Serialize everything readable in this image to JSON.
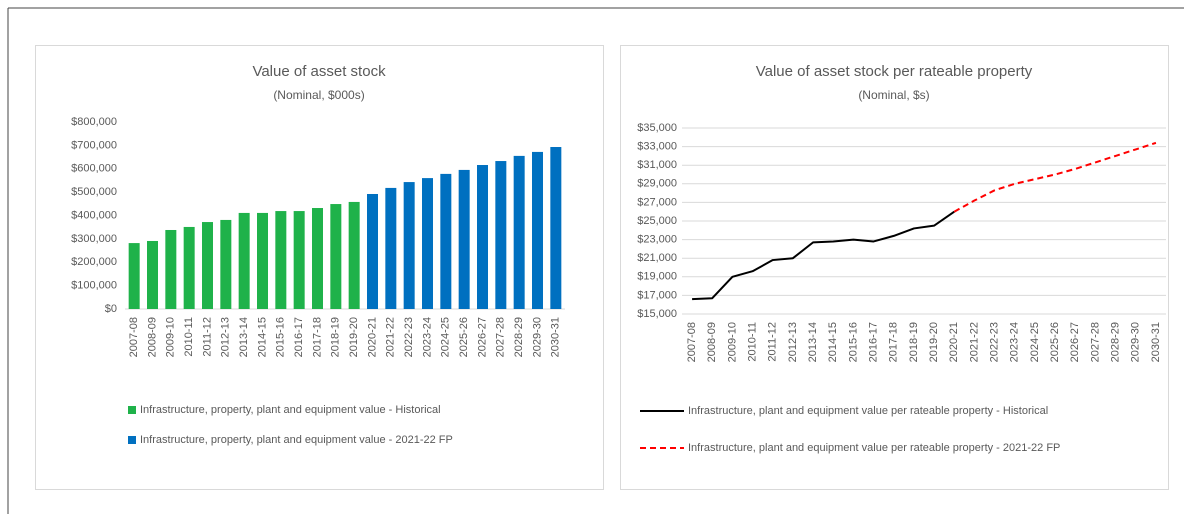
{
  "chart_data": [
    {
      "type": "bar",
      "title": "Value of asset stock",
      "subtitle": "(Nominal, $000s)",
      "categories": [
        "2007-08",
        "2008-09",
        "2009-10",
        "2010-11",
        "2011-12",
        "2012-13",
        "2013-14",
        "2014-15",
        "2015-16",
        "2016-17",
        "2017-18",
        "2018-19",
        "2019-20",
        "2020-21",
        "2021-22",
        "2022-23",
        "2023-24",
        "2024-25",
        "2025-26",
        "2026-27",
        "2027-28",
        "2028-29",
        "2029-30",
        "2030-31"
      ],
      "series": [
        {
          "name": "Infrastructure, property, plant and equipment value - Historical",
          "color": "#1fb24a",
          "values": [
            282000,
            291000,
            338000,
            351000,
            372000,
            381000,
            411000,
            411000,
            419000,
            419000,
            432000,
            449000,
            458000,
            null,
            null,
            null,
            null,
            null,
            null,
            null,
            null,
            null,
            null,
            null
          ]
        },
        {
          "name": "Infrastructure, property, plant and equipment value - 2021-22 FP",
          "color": "#0070c0",
          "values": [
            null,
            null,
            null,
            null,
            null,
            null,
            null,
            null,
            null,
            null,
            null,
            null,
            null,
            492000,
            518000,
            543000,
            560000,
            578000,
            595000,
            616000,
            633000,
            655000,
            672000,
            693000
          ]
        }
      ],
      "ylim": [
        0,
        800000
      ],
      "yticks": [
        {
          "value": 0,
          "label": "$0"
        },
        {
          "value": 100000,
          "label": "$100,000"
        },
        {
          "value": 200000,
          "label": "$200,000"
        },
        {
          "value": 300000,
          "label": "$300,000"
        },
        {
          "value": 400000,
          "label": "$400,000"
        },
        {
          "value": 500000,
          "label": "$500,000"
        },
        {
          "value": 600000,
          "label": "$600,000"
        },
        {
          "value": 700000,
          "label": "$700,000"
        },
        {
          "value": 800000,
          "label": "$800,000"
        }
      ],
      "grid": false,
      "legend": "bottom"
    },
    {
      "type": "line",
      "title": "Value of asset stock per rateable property",
      "subtitle": "(Nominal, $s)",
      "categories": [
        "2007-08",
        "2008-09",
        "2009-10",
        "2010-11",
        "2011-12",
        "2012-13",
        "2013-14",
        "2014-15",
        "2015-16",
        "2016-17",
        "2017-18",
        "2018-19",
        "2019-20",
        "2020-21",
        "2021-22",
        "2022-23",
        "2023-24",
        "2024-25",
        "2025-26",
        "2026-27",
        "2027-28",
        "2028-29",
        "2029-30",
        "2030-31"
      ],
      "series": [
        {
          "name": "Infrastructure, plant and equipment value per rateable property - Historical",
          "color": "#000000",
          "dash": false,
          "values": [
            16600,
            16700,
            19000,
            19600,
            20800,
            21000,
            22700,
            22800,
            23000,
            22800,
            23400,
            24200,
            24500,
            26000,
            null,
            null,
            null,
            null,
            null,
            null,
            null,
            null,
            null,
            null
          ]
        },
        {
          "name": "Infrastructure, plant and equipment value per rateable property - 2021-22 FP",
          "color": "#ff0000",
          "dash": true,
          "values": [
            null,
            null,
            null,
            null,
            null,
            null,
            null,
            null,
            null,
            null,
            null,
            null,
            null,
            26000,
            27200,
            28300,
            29000,
            29500,
            30000,
            30600,
            31300,
            32000,
            32700,
            33400
          ]
        }
      ],
      "ylim": [
        15000,
        35000
      ],
      "yticks": [
        {
          "value": 15000,
          "label": "$15,000"
        },
        {
          "value": 17000,
          "label": "$17,000"
        },
        {
          "value": 19000,
          "label": "$19,000"
        },
        {
          "value": 21000,
          "label": "$21,000"
        },
        {
          "value": 23000,
          "label": "$23,000"
        },
        {
          "value": 25000,
          "label": "$25,000"
        },
        {
          "value": 27000,
          "label": "$27,000"
        },
        {
          "value": 29000,
          "label": "$29,000"
        },
        {
          "value": 31000,
          "label": "$31,000"
        },
        {
          "value": 33000,
          "label": "$33,000"
        },
        {
          "value": 35000,
          "label": "$35,000"
        }
      ],
      "grid": true,
      "legend": "bottom"
    }
  ]
}
